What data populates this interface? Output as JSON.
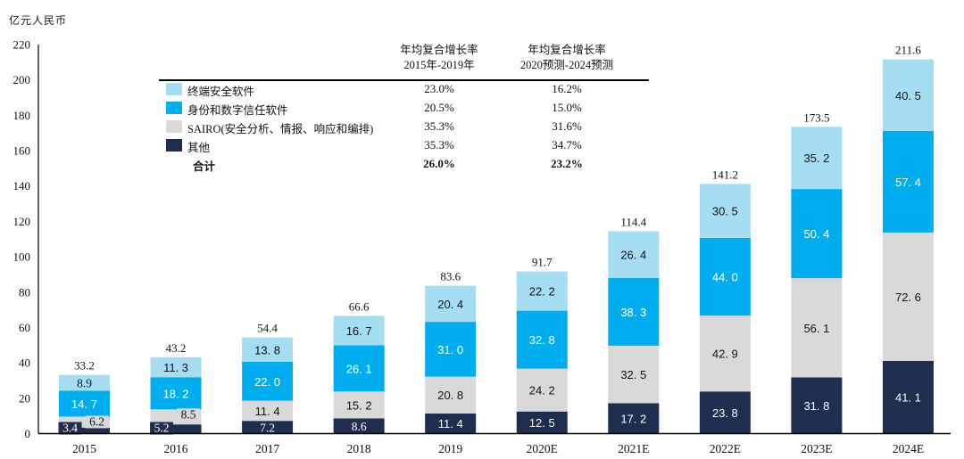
{
  "chart_data": {
    "type": "bar",
    "stacked": true,
    "unit_label": "亿元人民币",
    "categories": [
      "2015",
      "2016",
      "2017",
      "2018",
      "2019",
      "2020E",
      "2021E",
      "2022E",
      "2023E",
      "2024E"
    ],
    "series": [
      {
        "name": "其他",
        "color": "#1f2d4e",
        "label_color": "#ffffff",
        "values": [
          3.4,
          5.2,
          7.2,
          8.6,
          11.4,
          12.5,
          17.2,
          23.8,
          31.8,
          41.1
        ]
      },
      {
        "name": "SAIRO(安全分析、情报、响应和编排)",
        "color": "#d9d9d9",
        "label_color": "#111111",
        "values": [
          6.2,
          8.5,
          11.4,
          15.2,
          20.8,
          24.2,
          32.5,
          42.9,
          56.1,
          72.6
        ]
      },
      {
        "name": "身份和数字信任软件",
        "color": "#00adef",
        "label_color": "#ffffff",
        "values": [
          14.7,
          18.2,
          22.0,
          26.1,
          31.0,
          32.8,
          38.3,
          44.0,
          50.4,
          57.4
        ]
      },
      {
        "name": "终端安全软件",
        "color": "#a5ddf2",
        "label_color": "#111111",
        "values": [
          8.9,
          11.3,
          13.8,
          16.7,
          20.4,
          22.2,
          26.4,
          30.5,
          35.2,
          40.5
        ]
      }
    ],
    "value_labels": [
      [
        "3.4",
        "5.2",
        "7.2",
        "8.6",
        "11. 4",
        "12. 5",
        "17. 2",
        "23. 8",
        "31. 8",
        "41. 1"
      ],
      [
        "6.2",
        "8.5",
        "11. 4",
        "15. 2",
        "20. 8",
        "24. 2",
        "32. 5",
        "42. 9",
        "56. 1",
        "72. 6"
      ],
      [
        "14. 7",
        "18. 2",
        "22. 0",
        "26. 1",
        "31. 0",
        "32. 8",
        "38. 3",
        "44. 0",
        "50. 4",
        "57. 4"
      ],
      [
        "8.9",
        "11. 3",
        "13. 8",
        "16. 7",
        "20. 4",
        "22. 2",
        "26. 4",
        "30. 5",
        "35. 2",
        "40. 5"
      ]
    ],
    "totals": [
      "33.2",
      "43.2",
      "54.4",
      "66.6",
      "83.6",
      "91.7",
      "114.4",
      "141.2",
      "173.5",
      "211.6"
    ],
    "total_values": [
      33.2,
      43.2,
      54.4,
      66.6,
      83.6,
      91.7,
      114.4,
      141.2,
      173.5,
      211.6
    ],
    "ylim": [
      0,
      220
    ],
    "yticks": [
      0,
      20,
      40,
      60,
      80,
      100,
      120,
      140,
      160,
      180,
      200,
      220
    ],
    "ytick_labels": [
      "0",
      "20",
      "40",
      "60",
      "80",
      "100",
      "120",
      "140",
      "160",
      "180",
      "200",
      "220"
    ],
    "grid": false,
    "legend_placement": "top-left"
  },
  "cagr_table": {
    "col1_header_line1": "年均复合增长率",
    "col1_header_line2": "2015年-2019年",
    "col2_header_line1": "年均复合增长率",
    "col2_header_line2": "2020预测-2024预测",
    "rows": [
      {
        "label": "终端安全软件",
        "color": "#a5ddf2",
        "cagr1": "23.0%",
        "cagr2": "16.2%"
      },
      {
        "label": "身份和数字信任软件",
        "color": "#00adef",
        "cagr1": "20.5%",
        "cagr2": "15.0%"
      },
      {
        "label": "SAIRO(安全分析、情报、响应和编排)",
        "color": "#d9d9d9",
        "cagr1": "35.3%",
        "cagr2": "31.6%"
      },
      {
        "label": "其他",
        "color": "#1f2d4e",
        "cagr1": "35.3%",
        "cagr2": "34.7%"
      }
    ],
    "total": {
      "label": "合计",
      "cagr1": "26.0%",
      "cagr2": "23.2%"
    }
  }
}
